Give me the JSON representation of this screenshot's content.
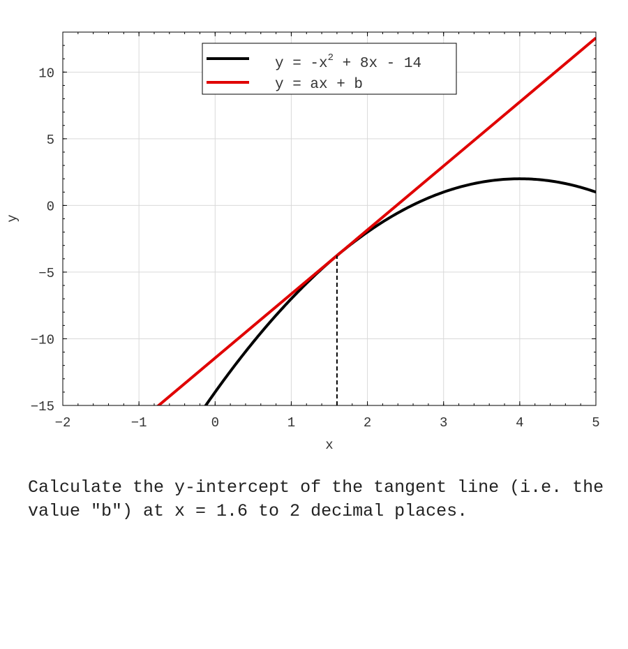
{
  "chart_data": {
    "type": "line",
    "xlabel": "x",
    "ylabel": "y",
    "xlim": [
      -2,
      5
    ],
    "ylim": [
      -15,
      13
    ],
    "x_ticks": [
      -2,
      -1,
      0,
      1,
      2,
      3,
      4,
      5
    ],
    "y_ticks": [
      -15,
      -10,
      -5,
      0,
      5,
      10
    ],
    "grid": true,
    "legend_placement": "top-center",
    "series": [
      {
        "name_parts": {
          "pre": "y = -x",
          "sup": "2",
          "post": " + 8x - 14"
        },
        "kind": "curve",
        "coefficients": {
          "a": -1,
          "b": 8,
          "c": -14
        },
        "color": "#000000"
      },
      {
        "name": "y = ax + b",
        "kind": "line",
        "slope": 4.8,
        "intercept": -11.44,
        "color": "#e00000"
      }
    ],
    "annotations": [
      {
        "type": "vertical-dashed-line",
        "x": 1.6,
        "y_from": -15,
        "y_to": -3.76,
        "color": "#000000"
      }
    ]
  },
  "question": "Calculate the y-intercept of the tangent line (i.e. the value \"b\") at x = 1.6 to 2 decimal places."
}
